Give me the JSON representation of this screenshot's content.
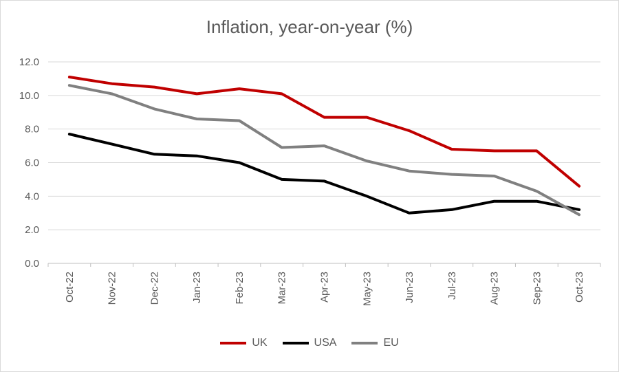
{
  "chart_data": {
    "type": "line",
    "title": "Inflation, year-on-year (%)",
    "xlabel": "",
    "ylabel": "",
    "categories": [
      "Oct-22",
      "Nov-22",
      "Dec-22",
      "Jan-23",
      "Feb-23",
      "Mar-23",
      "Apr-23",
      "May-23",
      "Jun-23",
      "Jul-23",
      "Aug-23",
      "Sep-23",
      "Oct-23"
    ],
    "ylim": [
      0,
      12
    ],
    "yticks": [
      "0.0",
      "2.0",
      "4.0",
      "6.0",
      "8.0",
      "10.0",
      "12.0"
    ],
    "grid": true,
    "legend_position": "bottom",
    "series": [
      {
        "name": "UK",
        "color": "#c00000",
        "values": [
          11.1,
          10.7,
          10.5,
          10.1,
          10.4,
          10.1,
          8.7,
          8.7,
          7.9,
          6.8,
          6.7,
          6.7,
          4.6
        ]
      },
      {
        "name": "USA",
        "color": "#000000",
        "values": [
          7.7,
          7.1,
          6.5,
          6.4,
          6.0,
          5.0,
          4.9,
          4.0,
          3.0,
          3.2,
          3.7,
          3.7,
          3.2
        ]
      },
      {
        "name": "EU",
        "color": "#808080",
        "values": [
          10.6,
          10.1,
          9.2,
          8.6,
          8.5,
          6.9,
          7.0,
          6.1,
          5.5,
          5.3,
          5.2,
          4.3,
          2.9
        ]
      }
    ]
  }
}
